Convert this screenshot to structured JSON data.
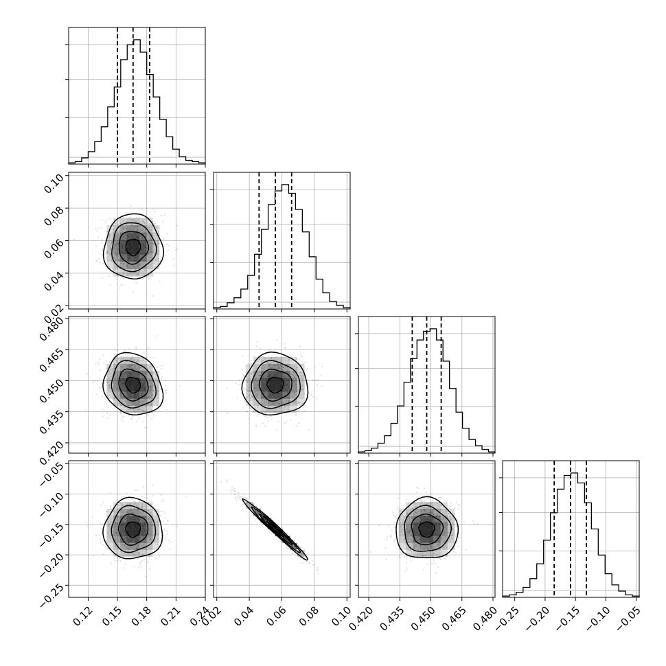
{
  "chart_data": {
    "type": "corner",
    "parameters": [
      {
        "id": "p0",
        "range": [
          0.1,
          0.24
        ],
        "ticks": [
          0.12,
          0.15,
          0.18,
          0.21,
          0.24
        ],
        "tick_labels": [
          "0.12",
          "0.15",
          "0.18",
          "0.21",
          "0.24"
        ],
        "quantiles": [
          0.15,
          0.166,
          0.183
        ],
        "histogram": [
          1,
          2,
          5,
          10,
          18,
          30,
          46,
          62,
          84,
          96,
          100,
          90,
          72,
          54,
          36,
          22,
          12,
          6,
          3,
          2,
          1
        ]
      },
      {
        "id": "p1",
        "range": [
          0.018,
          0.102
        ],
        "ticks": [
          0.02,
          0.04,
          0.06,
          0.08,
          0.1
        ],
        "tick_labels": [
          "0.02",
          "0.04",
          "0.06",
          "0.08",
          "0.10"
        ],
        "quantiles": [
          0.046,
          0.056,
          0.066
        ],
        "histogram": [
          1,
          2,
          5,
          9,
          16,
          27,
          44,
          64,
          84,
          95,
          100,
          93,
          80,
          62,
          42,
          24,
          13,
          6,
          3,
          1
        ]
      },
      {
        "id": "p2",
        "range": [
          0.415,
          0.481
        ],
        "ticks": [
          0.42,
          0.435,
          0.45,
          0.465,
          0.48
        ],
        "tick_labels": [
          "0.420",
          "0.435",
          "0.450",
          "0.465",
          "0.480"
        ],
        "quantiles": [
          0.441,
          0.448,
          0.455
        ],
        "histogram": [
          1,
          2,
          4,
          8,
          14,
          24,
          38,
          57,
          76,
          91,
          98,
          100,
          91,
          74,
          52,
          33,
          20,
          11,
          6,
          3,
          1
        ]
      },
      {
        "id": "p3",
        "range": [
          -0.27,
          -0.045
        ],
        "ticks": [
          -0.25,
          -0.2,
          -0.15,
          -0.1,
          -0.05
        ],
        "tick_labels": [
          "−0.25",
          "−0.20",
          "−0.15",
          "−0.10",
          "−0.05"
        ],
        "quantiles": [
          -0.185,
          -0.158,
          -0.132
        ],
        "histogram": [
          1,
          2,
          4,
          8,
          15,
          27,
          46,
          68,
          87,
          98,
          100,
          92,
          76,
          55,
          34,
          19,
          10,
          5,
          2,
          1
        ]
      }
    ],
    "pairs": [
      {
        "x": "p0",
        "y": "p1",
        "center": [
          0.166,
          0.056
        ],
        "sigma": [
          0.015,
          0.01
        ],
        "rho": 0.0
      },
      {
        "x": "p0",
        "y": "p2",
        "center": [
          0.166,
          0.448
        ],
        "sigma": [
          0.015,
          0.0075
        ],
        "rho": -0.15
      },
      {
        "x": "p1",
        "y": "p2",
        "center": [
          0.056,
          0.448
        ],
        "sigma": [
          0.01,
          0.0075
        ],
        "rho": 0.0
      },
      {
        "x": "p0",
        "y": "p3",
        "center": [
          0.166,
          -0.158
        ],
        "sigma": [
          0.015,
          0.025
        ],
        "rho": 0.0
      },
      {
        "x": "p1",
        "y": "p3",
        "center": [
          0.056,
          -0.158
        ],
        "sigma": [
          0.01,
          0.025
        ],
        "rho": -0.985
      },
      {
        "x": "p2",
        "y": "p3",
        "center": [
          0.448,
          -0.158
        ],
        "sigma": [
          0.0075,
          0.025
        ],
        "rho": 0.0
      }
    ],
    "grid": true,
    "contour_levels_sigma": [
      0.5,
      1.0,
      1.5,
      2.0
    ],
    "colors": {
      "line": "#000000",
      "density": "#000000",
      "grid": "#b0b0b0",
      "points": "#808080"
    }
  }
}
